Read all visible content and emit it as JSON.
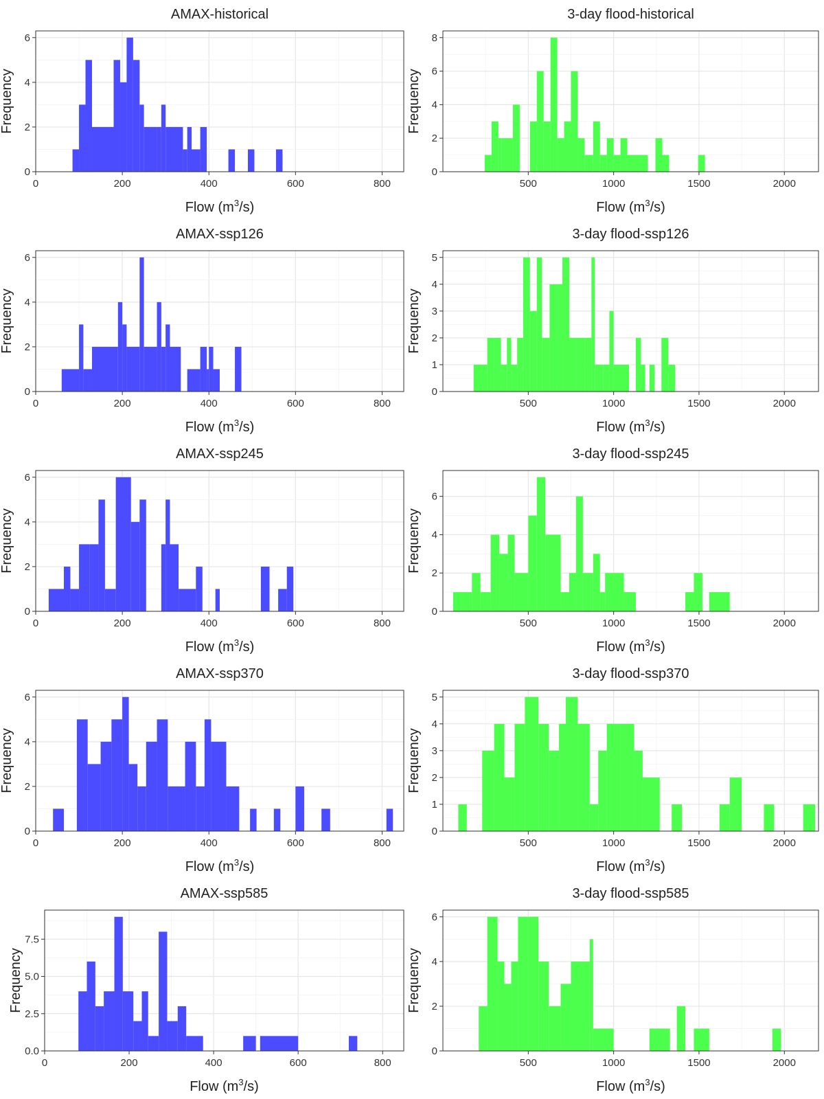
{
  "figure": {
    "ylabel": "Frequency",
    "xlabel_prefix": "Flow (m",
    "xlabel_sup": "3",
    "xlabel_suffix": "/s)"
  },
  "colors": {
    "AMAX": "#4b4bff",
    "flood": "#4dff4d"
  },
  "chart_data": [
    {
      "type": "bar",
      "title": "AMAX-historical",
      "series_color": "AMAX",
      "xlim": [
        0,
        850
      ],
      "xticks": [
        0,
        200,
        400,
        600,
        800
      ],
      "ylim": [
        0,
        6.3
      ],
      "yticks": [
        0,
        2,
        4,
        6
      ],
      "bins": [
        [
          85,
          100,
          1
        ],
        [
          100,
          115,
          3
        ],
        [
          115,
          130,
          5
        ],
        [
          130,
          180,
          2
        ],
        [
          180,
          195,
          5
        ],
        [
          195,
          210,
          4
        ],
        [
          210,
          225,
          6
        ],
        [
          225,
          240,
          5
        ],
        [
          240,
          250,
          3
        ],
        [
          250,
          280,
          2
        ],
        [
          280,
          290,
          2
        ],
        [
          290,
          300,
          3
        ],
        [
          300,
          340,
          2
        ],
        [
          340,
          350,
          1
        ],
        [
          350,
          360,
          2
        ],
        [
          360,
          380,
          1
        ],
        [
          380,
          395,
          2
        ],
        [
          445,
          460,
          1
        ],
        [
          490,
          505,
          1
        ],
        [
          555,
          570,
          1
        ]
      ]
    },
    {
      "type": "bar",
      "title": "3-day flood-historical",
      "series_color": "flood",
      "xlim": [
        0,
        2200
      ],
      "xticks": [
        500,
        1000,
        1500,
        2000
      ],
      "ylim": [
        0,
        8.4
      ],
      "yticks": [
        0,
        2,
        4,
        6,
        8
      ],
      "bins": [
        [
          245,
          285,
          1
        ],
        [
          285,
          325,
          3
        ],
        [
          325,
          345,
          2
        ],
        [
          345,
          410,
          2
        ],
        [
          410,
          450,
          4
        ],
        [
          510,
          550,
          3
        ],
        [
          550,
          590,
          6
        ],
        [
          590,
          630,
          3
        ],
        [
          630,
          670,
          8
        ],
        [
          670,
          710,
          2
        ],
        [
          710,
          750,
          3
        ],
        [
          750,
          790,
          6
        ],
        [
          790,
          830,
          2
        ],
        [
          830,
          880,
          1
        ],
        [
          880,
          920,
          3
        ],
        [
          920,
          960,
          1
        ],
        [
          960,
          1000,
          2
        ],
        [
          1000,
          1040,
          1
        ],
        [
          1040,
          1080,
          2
        ],
        [
          1080,
          1120,
          1
        ],
        [
          1120,
          1200,
          1
        ],
        [
          1245,
          1285,
          2
        ],
        [
          1285,
          1325,
          1
        ],
        [
          1495,
          1535,
          1
        ]
      ]
    },
    {
      "type": "bar",
      "title": "AMAX-ssp126",
      "series_color": "AMAX",
      "xlim": [
        0,
        850
      ],
      "xticks": [
        0,
        200,
        400,
        600,
        800
      ],
      "ylim": [
        0,
        6.3
      ],
      "yticks": [
        0,
        2,
        4,
        6
      ],
      "bins": [
        [
          60,
          100,
          1
        ],
        [
          100,
          110,
          3
        ],
        [
          110,
          130,
          1
        ],
        [
          130,
          190,
          2
        ],
        [
          190,
          200,
          4
        ],
        [
          200,
          210,
          3
        ],
        [
          210,
          240,
          2
        ],
        [
          240,
          250,
          6
        ],
        [
          250,
          280,
          2
        ],
        [
          280,
          290,
          4
        ],
        [
          290,
          300,
          2
        ],
        [
          300,
          310,
          3
        ],
        [
          310,
          335,
          2
        ],
        [
          350,
          380,
          1
        ],
        [
          380,
          395,
          2
        ],
        [
          395,
          400,
          1
        ],
        [
          400,
          410,
          2
        ],
        [
          410,
          425,
          1
        ],
        [
          460,
          475,
          2
        ]
      ]
    },
    {
      "type": "bar",
      "title": "3-day flood-ssp126",
      "series_color": "flood",
      "xlim": [
        0,
        2200
      ],
      "xticks": [
        500,
        1000,
        1500,
        2000
      ],
      "ylim": [
        0,
        5.25
      ],
      "yticks": [
        0,
        1,
        2,
        3,
        4,
        5
      ],
      "bins": [
        [
          180,
          260,
          1
        ],
        [
          260,
          300,
          2
        ],
        [
          300,
          340,
          2
        ],
        [
          340,
          375,
          1
        ],
        [
          375,
          400,
          2
        ],
        [
          400,
          435,
          1
        ],
        [
          435,
          470,
          2
        ],
        [
          470,
          510,
          5
        ],
        [
          510,
          550,
          3
        ],
        [
          550,
          580,
          5
        ],
        [
          580,
          625,
          2
        ],
        [
          625,
          670,
          4
        ],
        [
          670,
          700,
          4
        ],
        [
          700,
          740,
          5
        ],
        [
          740,
          780,
          2
        ],
        [
          780,
          830,
          2
        ],
        [
          830,
          870,
          2
        ],
        [
          870,
          890,
          5
        ],
        [
          890,
          940,
          1
        ],
        [
          940,
          975,
          1
        ],
        [
          975,
          1000,
          3
        ],
        [
          1000,
          1090,
          1
        ],
        [
          1130,
          1160,
          2
        ],
        [
          1160,
          1185,
          1
        ],
        [
          1210,
          1240,
          1
        ],
        [
          1280,
          1320,
          2
        ],
        [
          1320,
          1360,
          1
        ]
      ]
    },
    {
      "type": "bar",
      "title": "AMAX-ssp245",
      "series_color": "AMAX",
      "xlim": [
        0,
        850
      ],
      "xticks": [
        0,
        200,
        400,
        600,
        800
      ],
      "ylim": [
        0,
        6.3
      ],
      "yticks": [
        0,
        2,
        4,
        6
      ],
      "bins": [
        [
          30,
          65,
          1
        ],
        [
          65,
          80,
          2
        ],
        [
          80,
          100,
          1
        ],
        [
          100,
          125,
          3
        ],
        [
          125,
          145,
          3
        ],
        [
          145,
          160,
          5
        ],
        [
          160,
          185,
          1
        ],
        [
          185,
          220,
          6
        ],
        [
          220,
          240,
          4
        ],
        [
          240,
          255,
          5
        ],
        [
          290,
          300,
          3
        ],
        [
          300,
          310,
          5
        ],
        [
          310,
          330,
          3
        ],
        [
          330,
          370,
          1
        ],
        [
          370,
          385,
          2
        ],
        [
          415,
          425,
          1
        ],
        [
          520,
          540,
          2
        ],
        [
          560,
          580,
          1
        ],
        [
          580,
          595,
          2
        ]
      ]
    },
    {
      "type": "bar",
      "title": "3-day flood-ssp245",
      "series_color": "flood",
      "xlim": [
        0,
        2200
      ],
      "xticks": [
        500,
        1000,
        1500,
        2000
      ],
      "ylim": [
        0,
        7.35
      ],
      "yticks": [
        0,
        2,
        4,
        6
      ],
      "bins": [
        [
          60,
          170,
          1
        ],
        [
          170,
          220,
          2
        ],
        [
          220,
          280,
          1
        ],
        [
          280,
          330,
          4
        ],
        [
          330,
          380,
          3
        ],
        [
          380,
          420,
          4
        ],
        [
          420,
          500,
          2
        ],
        [
          500,
          550,
          5
        ],
        [
          550,
          600,
          7
        ],
        [
          600,
          690,
          4
        ],
        [
          690,
          740,
          1
        ],
        [
          740,
          780,
          2
        ],
        [
          780,
          820,
          6
        ],
        [
          820,
          880,
          2
        ],
        [
          880,
          920,
          3
        ],
        [
          920,
          950,
          1
        ],
        [
          950,
          1060,
          2
        ],
        [
          1060,
          1130,
          1
        ],
        [
          1420,
          1470,
          1
        ],
        [
          1470,
          1520,
          2
        ],
        [
          1560,
          1680,
          1
        ]
      ]
    },
    {
      "type": "bar",
      "title": "AMAX-ssp370",
      "series_color": "AMAX",
      "xlim": [
        0,
        850
      ],
      "xticks": [
        0,
        200,
        400,
        600,
        800
      ],
      "ylim": [
        0,
        6.3
      ],
      "yticks": [
        0,
        2,
        4,
        6
      ],
      "bins": [
        [
          40,
          65,
          1
        ],
        [
          95,
          120,
          5
        ],
        [
          120,
          150,
          3
        ],
        [
          150,
          175,
          4
        ],
        [
          175,
          200,
          5
        ],
        [
          200,
          215,
          6
        ],
        [
          215,
          235,
          3
        ],
        [
          235,
          255,
          2
        ],
        [
          255,
          280,
          4
        ],
        [
          280,
          305,
          5
        ],
        [
          305,
          345,
          2
        ],
        [
          345,
          370,
          4
        ],
        [
          370,
          390,
          2
        ],
        [
          390,
          405,
          5
        ],
        [
          405,
          440,
          4
        ],
        [
          440,
          470,
          2
        ],
        [
          495,
          510,
          1
        ],
        [
          550,
          565,
          1
        ],
        [
          600,
          620,
          2
        ],
        [
          660,
          680,
          1
        ],
        [
          810,
          825,
          1
        ]
      ]
    },
    {
      "type": "bar",
      "title": "3-day flood-ssp370",
      "series_color": "flood",
      "xlim": [
        0,
        2200
      ],
      "xticks": [
        500,
        1000,
        1500,
        2000
      ],
      "ylim": [
        0,
        5.25
      ],
      "yticks": [
        0,
        1,
        2,
        3,
        4,
        5
      ],
      "bins": [
        [
          90,
          140,
          1
        ],
        [
          230,
          300,
          3
        ],
        [
          300,
          360,
          4
        ],
        [
          360,
          420,
          2
        ],
        [
          420,
          480,
          4
        ],
        [
          480,
          560,
          5
        ],
        [
          560,
          620,
          4
        ],
        [
          620,
          680,
          3
        ],
        [
          680,
          720,
          4
        ],
        [
          720,
          790,
          5
        ],
        [
          790,
          860,
          4
        ],
        [
          860,
          910,
          1
        ],
        [
          910,
          960,
          3
        ],
        [
          960,
          1040,
          4
        ],
        [
          1040,
          1120,
          4
        ],
        [
          1120,
          1170,
          3
        ],
        [
          1170,
          1270,
          2
        ],
        [
          1340,
          1400,
          1
        ],
        [
          1620,
          1680,
          1
        ],
        [
          1680,
          1750,
          2
        ],
        [
          1880,
          1940,
          1
        ],
        [
          2110,
          2180,
          1
        ]
      ]
    },
    {
      "type": "bar",
      "title": "AMAX-ssp585",
      "series_color": "AMAX",
      "xlim": [
        0,
        850
      ],
      "xticks": [
        0,
        200,
        400,
        600,
        800
      ],
      "ylim": [
        0,
        9.45
      ],
      "yticks": [
        0,
        2.5,
        5,
        7.5
      ],
      "ytick_labels": [
        "0.0",
        "2.5",
        "5.0",
        "7.5"
      ],
      "bins": [
        [
          80,
          100,
          4
        ],
        [
          100,
          120,
          6
        ],
        [
          120,
          140,
          3
        ],
        [
          140,
          165,
          4
        ],
        [
          165,
          185,
          9
        ],
        [
          185,
          210,
          4
        ],
        [
          210,
          230,
          2
        ],
        [
          230,
          245,
          4
        ],
        [
          245,
          270,
          1
        ],
        [
          270,
          290,
          8
        ],
        [
          290,
          315,
          2
        ],
        [
          315,
          335,
          3
        ],
        [
          335,
          375,
          1
        ],
        [
          470,
          500,
          1
        ],
        [
          510,
          600,
          1
        ],
        [
          720,
          740,
          1
        ]
      ]
    },
    {
      "type": "bar",
      "title": "3-day flood-ssp585",
      "series_color": "flood",
      "xlim": [
        0,
        2200
      ],
      "xticks": [
        500,
        1000,
        1500,
        2000
      ],
      "ylim": [
        0,
        6.3
      ],
      "yticks": [
        0,
        2,
        4,
        6
      ],
      "bins": [
        [
          210,
          260,
          2
        ],
        [
          260,
          320,
          6
        ],
        [
          320,
          360,
          4
        ],
        [
          360,
          400,
          3
        ],
        [
          400,
          440,
          4
        ],
        [
          440,
          500,
          6
        ],
        [
          500,
          560,
          6
        ],
        [
          560,
          620,
          4
        ],
        [
          620,
          690,
          2
        ],
        [
          690,
          750,
          3
        ],
        [
          750,
          860,
          4
        ],
        [
          860,
          880,
          5
        ],
        [
          880,
          1000,
          1
        ],
        [
          1210,
          1330,
          1
        ],
        [
          1370,
          1420,
          2
        ],
        [
          1470,
          1560,
          1
        ],
        [
          1930,
          1980,
          1
        ]
      ]
    }
  ]
}
